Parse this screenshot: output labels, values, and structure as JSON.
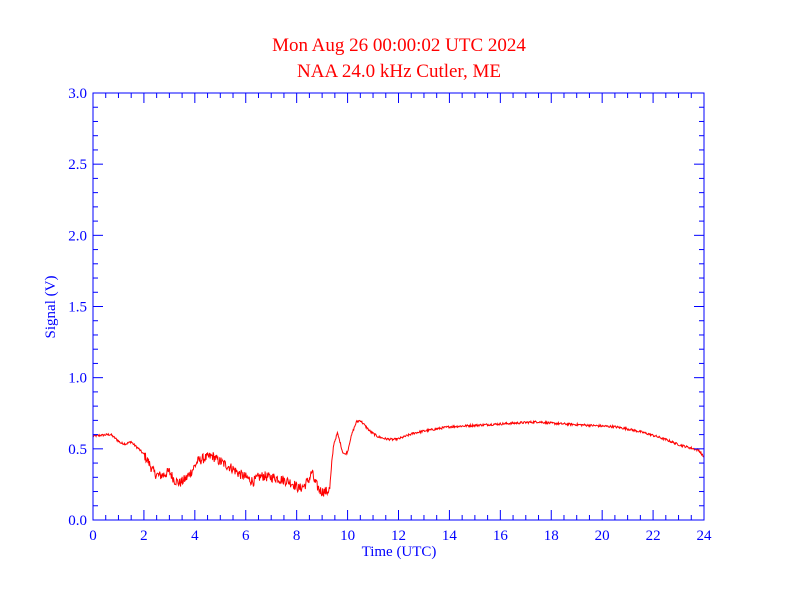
{
  "chart_data": {
    "type": "line",
    "title": "Mon Aug 26 00:00:02 UTC 2024",
    "subtitle": "NAA 24.0 kHz Cutler, ME",
    "xlabel": "Time (UTC)",
    "ylabel": "Signal (V)",
    "xlim": [
      0,
      24
    ],
    "ylim": [
      0,
      3
    ],
    "x_ticks": [
      0,
      2,
      4,
      6,
      8,
      10,
      12,
      14,
      16,
      18,
      20,
      22,
      24
    ],
    "x_tick_labels": [
      "0",
      "2",
      "4",
      "6",
      "8",
      "10",
      "12",
      "14",
      "16",
      "18",
      "20",
      "22",
      "24"
    ],
    "y_ticks": [
      0,
      0.5,
      1,
      1.5,
      2,
      2.5,
      3
    ],
    "y_tick_labels": [
      "0.0",
      "0.5",
      "1.0",
      "1.5",
      "2.0",
      "2.5",
      "3.0"
    ],
    "grid": false,
    "colors": {
      "axes": "#0000ff",
      "text": "#0000ff",
      "title": "#ff0000",
      "series": "#ff0000"
    },
    "series": [
      {
        "x": [
          0,
          0.3,
          0.6,
          0.7,
          0.9,
          1.1,
          1.3,
          1.5,
          1.6,
          1.8,
          2.0,
          2.2,
          2.4,
          2.6,
          2.8,
          3.0,
          3.2,
          3.4,
          3.5,
          3.7,
          3.9,
          4.1,
          4.3,
          4.5,
          4.7,
          4.9,
          5.1,
          5.3,
          5.5,
          5.7,
          5.9,
          6.1,
          6.3,
          6.5,
          6.7,
          6.9,
          7.1,
          7.3,
          7.5,
          7.7,
          7.9,
          8.1,
          8.3,
          8.5,
          8.6,
          8.7,
          8.8,
          8.9,
          9.0,
          9.2,
          9.3,
          9.45,
          9.6,
          9.7,
          9.8,
          9.9,
          10.0,
          10.1,
          10.2,
          10.35,
          10.5,
          10.7,
          10.9,
          11.2,
          11.5,
          11.8,
          12.0,
          12.3,
          12.6,
          13.0,
          13.5,
          14.0,
          14.5,
          15.0,
          15.5,
          16.0,
          16.5,
          17.0,
          17.5,
          18.0,
          18.5,
          19.0,
          19.5,
          20.0,
          20.5,
          21.0,
          21.5,
          22.0,
          22.5,
          23.0,
          23.5,
          23.8,
          24.0
        ],
        "values": [
          0.59,
          0.595,
          0.6,
          0.6,
          0.57,
          0.54,
          0.535,
          0.55,
          0.53,
          0.5,
          0.46,
          0.4,
          0.33,
          0.31,
          0.32,
          0.34,
          0.28,
          0.26,
          0.27,
          0.3,
          0.35,
          0.41,
          0.43,
          0.44,
          0.45,
          0.42,
          0.4,
          0.38,
          0.36,
          0.33,
          0.31,
          0.29,
          0.27,
          0.3,
          0.31,
          0.3,
          0.3,
          0.29,
          0.28,
          0.27,
          0.25,
          0.22,
          0.24,
          0.29,
          0.34,
          0.27,
          0.24,
          0.21,
          0.2,
          0.2,
          0.22,
          0.53,
          0.61,
          0.55,
          0.48,
          0.46,
          0.48,
          0.56,
          0.62,
          0.69,
          0.7,
          0.66,
          0.62,
          0.585,
          0.57,
          0.565,
          0.57,
          0.59,
          0.61,
          0.625,
          0.64,
          0.655,
          0.66,
          0.665,
          0.67,
          0.675,
          0.68,
          0.685,
          0.69,
          0.68,
          0.675,
          0.67,
          0.665,
          0.66,
          0.655,
          0.64,
          0.62,
          0.595,
          0.565,
          0.53,
          0.505,
          0.49,
          0.44
        ]
      }
    ]
  }
}
